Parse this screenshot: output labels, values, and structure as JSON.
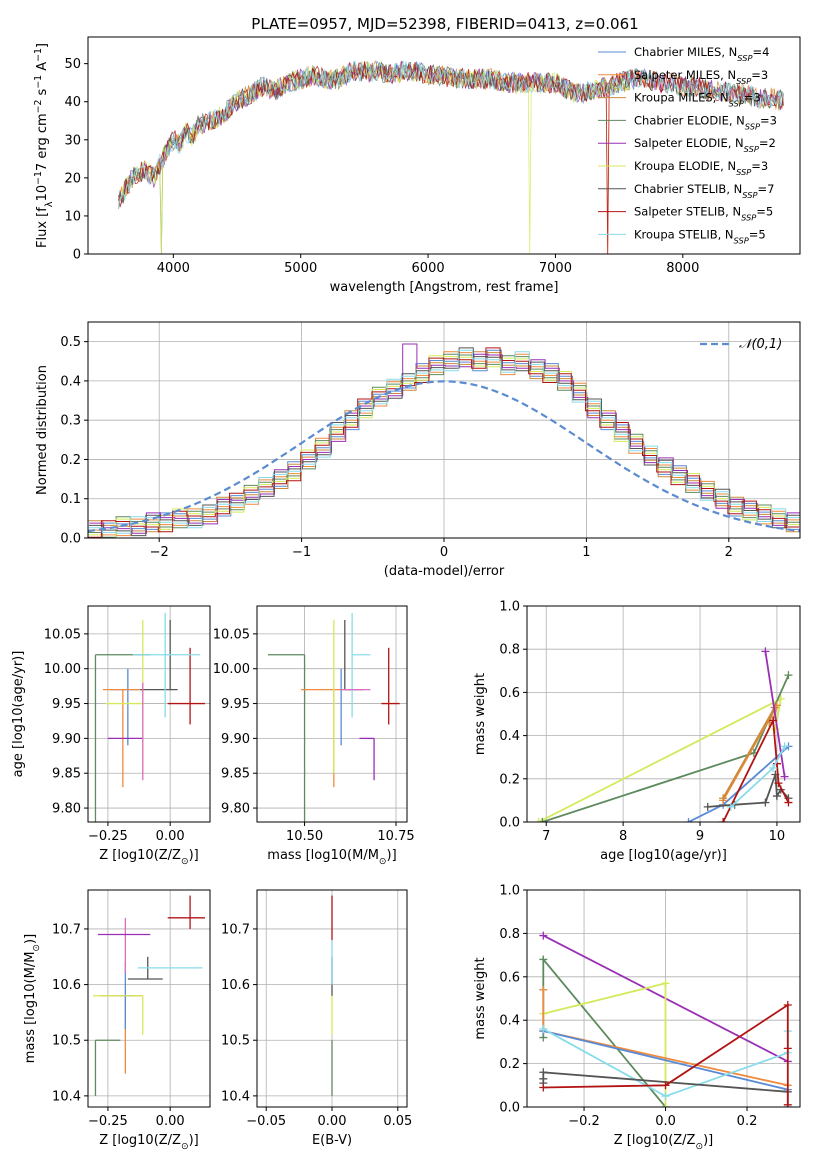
{
  "figure": {
    "title": "PLATE=0957, MJD=52398, FIBERID=0413, z=0.061"
  },
  "colors": {
    "chabrier_miles": "#5a8bd6",
    "salpeter_miles": "#f08a3c",
    "kroupa_miles": "#c98b3a",
    "chabrier_elodie": "#5e8a5e",
    "salpeter_elodie": "#9a2fb5",
    "kroupa_elodie": "#d4ea5a",
    "chabrier_stelib": "#555555",
    "salpeter_stelib": "#b21414",
    "kroupa_stelib": "#88dcea",
    "gaussian": "#5b8bd0"
  },
  "chart_data": [
    {
      "id": "spectrum",
      "type": "line",
      "title": "PLATE=0957, MJD=52398, FIBERID=0413, z=0.061",
      "xlabel": "wavelength [Angstrom, rest frame]",
      "ylabel": "Flux [f_λ10^-17 erg cm^-2 s^-1 A^-1]",
      "xlim": [
        3330,
        8920
      ],
      "ylim": [
        0,
        57
      ],
      "xticks": [
        "4000",
        "5000",
        "6000",
        "7000",
        "8000"
      ],
      "yticks": [
        "0",
        "10",
        "20",
        "30",
        "40",
        "50"
      ],
      "legend_position": "top-right",
      "envelope": {
        "x": [
          3570,
          3620,
          3700,
          3780,
          3850,
          3900,
          3950,
          4000,
          4050,
          4100,
          4150,
          4200,
          4300,
          4400,
          4500,
          4600,
          4700,
          4800,
          4900,
          5000,
          5100,
          5200,
          5300,
          5400,
          5500,
          5600,
          5700,
          5800,
          5900,
          6000,
          6100,
          6200,
          6300,
          6400,
          6500,
          6600,
          6700,
          6800,
          6900,
          7000,
          7100,
          7200,
          7300,
          7400,
          7500,
          7600,
          7700,
          7800,
          7900,
          8000,
          8100,
          8200,
          8300,
          8400,
          8500,
          8600,
          8700,
          8790
        ],
        "y": [
          14,
          17,
          21,
          22,
          20,
          24,
          27,
          30,
          29,
          32,
          31,
          34,
          35,
          37,
          40,
          42,
          44,
          43,
          45,
          46,
          47,
          46,
          46,
          48,
          48,
          48,
          47,
          48,
          48,
          47,
          47,
          46,
          46,
          46,
          46,
          45,
          45,
          45,
          45,
          45,
          43,
          42,
          43,
          44,
          45,
          46,
          46,
          45,
          45,
          44,
          44,
          43,
          43,
          42,
          42,
          41,
          41,
          40
        ]
      },
      "series": [
        {
          "name": "Chabrier MILES, N_SSP=4",
          "color": "#5a8bd6"
        },
        {
          "name": "Salpeter MILES, N_SSP=3",
          "color": "#f08a3c"
        },
        {
          "name": "Kroupa MILES, N_SSP=3",
          "color": "#c98b3a"
        },
        {
          "name": "Chabrier ELODIE, N_SSP=3",
          "color": "#5e8a5e"
        },
        {
          "name": "Salpeter ELODIE, N_SSP=2",
          "color": "#9a2fb5"
        },
        {
          "name": "Kroupa ELODIE, N_SSP=3",
          "color": "#d4ea5a"
        },
        {
          "name": "Chabrier STELIB, N_SSP=7",
          "color": "#555555"
        },
        {
          "name": "Salpeter STELIB, N_SSP=5",
          "color": "#b21414"
        },
        {
          "name": "Kroupa STELIB, N_SSP=5",
          "color": "#88dcea"
        }
      ]
    },
    {
      "id": "residuals",
      "type": "bar",
      "xlabel": "(data-model)/error",
      "ylabel": "Normed distribution",
      "xlim": [
        -2.5,
        2.5
      ],
      "ylim": [
        0,
        0.55
      ],
      "xticks": [
        "−2",
        "−1",
        "0",
        "1",
        "2"
      ],
      "yticks": [
        "0.0",
        "0.1",
        "0.2",
        "0.3",
        "0.4",
        "0.5"
      ],
      "legend": "𝒩(0,1)",
      "legend_position": "top-right",
      "bin_width": 0.1,
      "bin_start": -2.5,
      "series": [
        {
          "color": "#5a8bd6",
          "shift": 0.005
        },
        {
          "color": "#f08a3c",
          "shift": -0.004
        },
        {
          "color": "#c98b3a",
          "shift": 0.008
        },
        {
          "color": "#5e8a5e",
          "shift": -0.006
        },
        {
          "color": "#9a2fb5",
          "shift": 0.02
        },
        {
          "color": "#d4ea5a",
          "shift": -0.01
        },
        {
          "color": "#555555",
          "shift": 0.012
        },
        {
          "color": "#b21414",
          "shift": -0.012
        },
        {
          "color": "#88dcea",
          "shift": 0.0
        }
      ],
      "base_values": [
        0.02,
        0.02,
        0.03,
        0.03,
        0.04,
        0.04,
        0.05,
        0.05,
        0.06,
        0.08,
        0.09,
        0.11,
        0.13,
        0.15,
        0.17,
        0.2,
        0.23,
        0.27,
        0.3,
        0.33,
        0.36,
        0.38,
        0.4,
        0.42,
        0.44,
        0.45,
        0.46,
        0.45,
        0.46,
        0.44,
        0.45,
        0.43,
        0.42,
        0.4,
        0.37,
        0.33,
        0.3,
        0.27,
        0.24,
        0.21,
        0.18,
        0.16,
        0.14,
        0.12,
        0.1,
        0.08,
        0.07,
        0.06,
        0.05,
        0.04
      ]
    },
    {
      "id": "age_vs_Z",
      "type": "scatter",
      "xlabel": "Z [log10(Z/Z⊙)]",
      "ylabel": "age  [log10(age/yr)]",
      "xlim": [
        -0.33,
        0.16
      ],
      "ylim": [
        9.78,
        10.09
      ],
      "xticks": [
        "−0.25",
        "0.00"
      ],
      "yticks": [
        "9.80",
        "9.85",
        "9.90",
        "9.95",
        "10.00",
        "10.05"
      ],
      "points": [
        {
          "color": "#5e8a5e",
          "x": -0.3,
          "y": 10.02,
          "x_lo": 0.0,
          "x_hi": 0.0,
          "y_lo": 0.24,
          "y_hi": 0.0,
          "cap": "corner"
        },
        {
          "color": "#5a8bd6",
          "x": -0.17,
          "y": 9.97,
          "x_lo": 0.07,
          "x_hi": 0.04,
          "y_lo": 0.08,
          "y_hi": 0.03
        },
        {
          "color": "#f08a3c",
          "x": -0.19,
          "y": 9.97,
          "x_lo": 0.08,
          "x_hi": 0.08,
          "y_lo": 0.14,
          "y_hi": 0.0
        },
        {
          "color": "#9a2fb5",
          "x": -0.18,
          "y": 9.9,
          "x_lo": 0.07,
          "x_hi": 0.07,
          "y_lo": 0.0,
          "y_hi": 0.0
        },
        {
          "color": "#d4ea5a",
          "x": -0.11,
          "y": 9.95,
          "x_lo": 0.15,
          "x_hi": 0.0,
          "y_lo": 0.1,
          "y_hi": 0.12
        },
        {
          "color": "#5e8a5e",
          "x": -0.17,
          "y": 10.02,
          "x_lo": 0.13,
          "x_hi": 0.09,
          "y_lo": 0.0,
          "y_hi": 0.0
        },
        {
          "color": "#555555",
          "x": 0.0,
          "y": 9.97,
          "x_lo": 0.12,
          "x_hi": 0.03,
          "y_lo": 0.0,
          "y_hi": 0.1
        },
        {
          "color": "#e06bbf",
          "x": -0.11,
          "y": 9.95,
          "x_lo": 0.0,
          "x_hi": 0.0,
          "y_lo": 0.11,
          "y_hi": 0.03
        },
        {
          "color": "#b21414",
          "x": 0.08,
          "y": 9.95,
          "x_lo": 0.09,
          "x_hi": 0.06,
          "y_lo": 0.03,
          "y_hi": 0.08
        },
        {
          "color": "#88dcea",
          "x": -0.02,
          "y": 10.02,
          "x_lo": 0.13,
          "x_hi": 0.14,
          "y_lo": 0.09,
          "y_hi": 0.06
        }
      ]
    },
    {
      "id": "age_vs_mass",
      "type": "scatter",
      "xlabel": "mass [log10(M/M⊙)]",
      "ylabel": "",
      "xlim": [
        10.37,
        10.78
      ],
      "ylim": [
        9.78,
        10.09
      ],
      "xticks": [
        "10.50",
        "10.75"
      ],
      "yticks": [
        "9.80",
        "9.85",
        "9.90",
        "9.95",
        "10.00",
        "10.05"
      ],
      "points": [
        {
          "color": "#5e8a5e",
          "x": 10.5,
          "y": 10.02,
          "x_lo": 0.1,
          "x_hi": 0.0,
          "y_lo": 0.24,
          "y_hi": 0.0
        },
        {
          "color": "#f08a3c",
          "x": 10.58,
          "y": 9.97,
          "x_lo": 0.09,
          "x_hi": 0.06,
          "y_lo": 0.14,
          "y_hi": 0.0
        },
        {
          "color": "#5a8bd6",
          "x": 10.6,
          "y": 9.97,
          "x_lo": 0.0,
          "x_hi": 0.0,
          "y_lo": 0.08,
          "y_hi": 0.03
        },
        {
          "color": "#d4ea5a",
          "x": 10.58,
          "y": 9.95,
          "x_lo": 0.0,
          "x_hi": 0.0,
          "y_lo": 0.1,
          "y_hi": 0.12
        },
        {
          "color": "#555555",
          "x": 10.61,
          "y": 9.97,
          "x_lo": 0.0,
          "x_hi": 0.05,
          "y_lo": 0.0,
          "y_hi": 0.1
        },
        {
          "color": "#88dcea",
          "x": 10.63,
          "y": 10.02,
          "x_lo": 0.0,
          "x_hi": 0.05,
          "y_lo": 0.09,
          "y_hi": 0.06
        },
        {
          "color": "#e06bbf",
          "x": 10.65,
          "y": 9.97,
          "x_lo": 0.05,
          "x_hi": 0.03,
          "y_lo": 0.0,
          "y_hi": 0.0
        },
        {
          "color": "#9a2fb5",
          "x": 10.69,
          "y": 9.9,
          "x_lo": 0.04,
          "x_hi": 0.0,
          "y_lo": 0.06,
          "y_hi": 0.0
        },
        {
          "color": "#b21414",
          "x": 10.73,
          "y": 9.95,
          "x_lo": 0.02,
          "x_hi": 0.03,
          "y_lo": 0.03,
          "y_hi": 0.08
        }
      ]
    },
    {
      "id": "weight_vs_age",
      "type": "line",
      "xlabel": "age  [log10(age/yr)]",
      "ylabel": "mass weight",
      "xlim": [
        6.75,
        10.3
      ],
      "ylim": [
        0.0,
        1.0
      ],
      "xticks": [
        "7",
        "8",
        "9",
        "10"
      ],
      "yticks": [
        "0.0",
        "0.2",
        "0.4",
        "0.6",
        "0.8",
        "1.0"
      ],
      "series": [
        {
          "color": "#d4ea5a",
          "x": [
            6.9,
            10.05,
            9.98
          ],
          "y": [
            0.0,
            0.57,
            0.43
          ]
        },
        {
          "color": "#5e8a5e",
          "x": [
            6.95,
            9.7,
            10.15
          ],
          "y": [
            0.0,
            0.32,
            0.68
          ]
        },
        {
          "color": "#5a8bd6",
          "x": [
            8.85,
            9.3,
            10.15
          ],
          "y": [
            0.0,
            0.08,
            0.35
          ]
        },
        {
          "color": "#f08a3c",
          "x": [
            9.3,
            10.0,
            9.95
          ],
          "y": [
            0.1,
            0.54,
            0.47
          ]
        },
        {
          "color": "#c98b3a",
          "x": [
            9.3,
            9.97,
            9.9
          ],
          "y": [
            0.11,
            0.53,
            0.46
          ]
        },
        {
          "color": "#9a2fb5",
          "x": [
            9.85,
            10.1
          ],
          "y": [
            0.79,
            0.21
          ]
        },
        {
          "color": "#555555",
          "x": [
            9.1,
            9.45,
            9.85,
            9.98,
            10.0,
            10.05,
            10.15
          ],
          "y": [
            0.07,
            0.08,
            0.09,
            0.22,
            0.12,
            0.15,
            0.11
          ]
        },
        {
          "color": "#b21414",
          "x": [
            9.3,
            9.95,
            10.0,
            10.02,
            10.15
          ],
          "y": [
            0.0,
            0.47,
            0.27,
            0.18,
            0.09
          ]
        },
        {
          "color": "#88dcea",
          "x": [
            9.4,
            9.95,
            10.1
          ],
          "y": [
            0.07,
            0.25,
            0.35
          ]
        }
      ]
    },
    {
      "id": "mass_vs_Z",
      "type": "scatter",
      "xlabel": "Z [log10(Z/Z⊙)]",
      "ylabel": "mass [log10(M/M⊙)]",
      "xlim": [
        -0.33,
        0.16
      ],
      "ylim": [
        10.38,
        10.77
      ],
      "xticks": [
        "−0.25",
        "0.00"
      ],
      "yticks": [
        "10.4",
        "10.5",
        "10.6",
        "10.7"
      ],
      "points": [
        {
          "color": "#5e8a5e",
          "x": -0.3,
          "y": 10.5,
          "x_lo": 0.0,
          "x_hi": 0.1,
          "y_lo": 0.1,
          "y_hi": 0.0
        },
        {
          "color": "#f08a3c",
          "x": -0.18,
          "y": 10.58,
          "x_lo": 0.1,
          "x_hi": 0.07,
          "y_lo": 0.14,
          "y_hi": 0.0
        },
        {
          "color": "#5a8bd6",
          "x": -0.18,
          "y": 10.58,
          "x_lo": 0.02,
          "x_hi": 0.03,
          "y_lo": 0.06,
          "y_hi": 0.06
        },
        {
          "color": "#d4ea5a",
          "x": -0.11,
          "y": 10.58,
          "x_lo": 0.2,
          "x_hi": 0.0,
          "y_lo": 0.07,
          "y_hi": 0.0
        },
        {
          "color": "#555555",
          "x": -0.09,
          "y": 10.61,
          "x_lo": 0.08,
          "x_hi": 0.06,
          "y_lo": 0.0,
          "y_hi": 0.04
        },
        {
          "color": "#e06bbf",
          "x": -0.18,
          "y": 10.65,
          "x_lo": 0.0,
          "x_hi": 0.0,
          "y_lo": 0.03,
          "y_hi": 0.07
        },
        {
          "color": "#9a2fb5",
          "x": -0.18,
          "y": 10.69,
          "x_lo": 0.11,
          "x_hi": 0.1,
          "y_lo": 0.0,
          "y_hi": 0.0
        },
        {
          "color": "#88dcea",
          "x": -0.02,
          "y": 10.63,
          "x_lo": 0.11,
          "x_hi": 0.15,
          "y_lo": 0.0,
          "y_hi": 0.0
        },
        {
          "color": "#b21414",
          "x": 0.08,
          "y": 10.72,
          "x_lo": 0.09,
          "x_hi": 0.06,
          "y_lo": 0.02,
          "y_hi": 0.04
        }
      ]
    },
    {
      "id": "mass_vs_ebv",
      "type": "scatter",
      "xlabel": "E(B-V)",
      "ylabel": "",
      "xlim": [
        -0.057,
        0.057
      ],
      "ylim": [
        10.38,
        10.77
      ],
      "xticks": [
        "−0.05",
        "0.00",
        "0.05"
      ],
      "yticks": [
        "10.4",
        "10.5",
        "10.6",
        "10.7"
      ],
      "points": [
        {
          "color": "#5e8a5e",
          "x": 0.0,
          "y": 10.5,
          "y_lo": 0.1,
          "y_hi": 0.0
        },
        {
          "color": "#d4ea5a",
          "x": 0.0,
          "y": 10.58,
          "y_lo": 0.07,
          "y_hi": 0.0
        },
        {
          "color": "#555555",
          "x": 0.0,
          "y": 10.61,
          "y_lo": 0.03,
          "y_hi": 0.04
        },
        {
          "color": "#88dcea",
          "x": 0.0,
          "y": 10.63,
          "y_lo": 0.03,
          "y_hi": 0.05
        },
        {
          "color": "#b21414",
          "x": 0.0,
          "y": 10.72,
          "y_lo": 0.04,
          "y_hi": 0.04
        }
      ]
    },
    {
      "id": "weight_vs_Z",
      "type": "line",
      "xlabel": "Z [log10(Z/Z⊙)]",
      "ylabel": "mass weight",
      "xlim": [
        -0.34,
        0.33
      ],
      "ylim": [
        0.0,
        1.0
      ],
      "xticks": [
        "−0.2",
        "0.0",
        "0.2"
      ],
      "yticks": [
        "0.0",
        "0.2",
        "0.4",
        "0.6",
        "0.8",
        "1.0"
      ],
      "series": [
        {
          "color": "#9a2fb5",
          "x": [
            -0.3,
            0.3
          ],
          "y": [
            0.79,
            0.21
          ]
        },
        {
          "color": "#5e8a5e",
          "x": [
            -0.3,
            -0.3,
            0.0
          ],
          "y": [
            0.32,
            0.68,
            0.0
          ]
        },
        {
          "color": "#d4ea5a",
          "x": [
            -0.3,
            0.0,
            0.0
          ],
          "y": [
            0.43,
            0.57,
            0.0
          ]
        },
        {
          "color": "#f08a3c",
          "x": [
            -0.3,
            -0.3,
            0.3
          ],
          "y": [
            0.54,
            0.35,
            0.1
          ]
        },
        {
          "color": "#5a8bd6",
          "x": [
            -0.3,
            0.3,
            0.3
          ],
          "y": [
            0.35,
            0.08,
            0.0
          ]
        },
        {
          "color": "#88dcea",
          "x": [
            -0.3,
            0.0,
            0.3,
            0.3
          ],
          "y": [
            0.36,
            0.05,
            0.25,
            0.35
          ]
        },
        {
          "color": "#555555",
          "x": [
            -0.3,
            -0.3,
            -0.3,
            0.3
          ],
          "y": [
            0.11,
            0.13,
            0.16,
            0.07
          ]
        },
        {
          "color": "#b21414",
          "x": [
            -0.3,
            0.0,
            0.3,
            0.3,
            0.3
          ],
          "y": [
            0.09,
            0.1,
            0.47,
            0.27,
            0.01
          ]
        }
      ]
    }
  ]
}
